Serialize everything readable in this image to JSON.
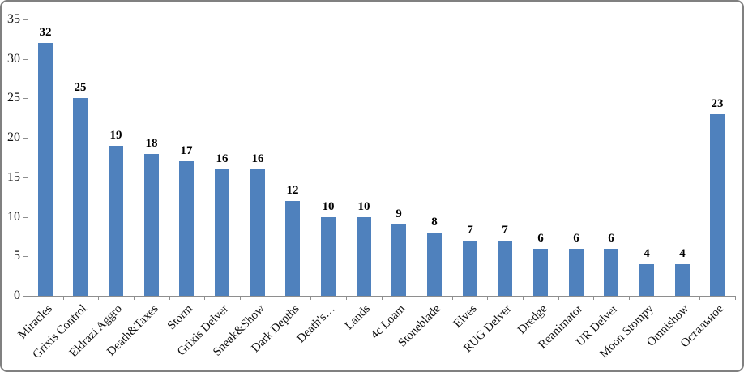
{
  "chart_data": {
    "type": "bar",
    "title": "",
    "xlabel": "",
    "ylabel": "",
    "categories": [
      "Miracles",
      "Grixis Control",
      "Eldrazi Aggro",
      "Death&Taxes",
      "Storm",
      "Grixis Delver",
      "Sneak&Show",
      "Dark Depths",
      "Death's…",
      "Lands",
      "4c Loam",
      "Stoneblade",
      "Elves",
      "RUG Delver",
      "Dredge",
      "Reanimator",
      "UR Delver",
      "Moon Stompy",
      "Omnishow",
      "Остальное"
    ],
    "values": [
      32,
      25,
      19,
      18,
      17,
      16,
      16,
      12,
      10,
      10,
      9,
      8,
      7,
      7,
      6,
      6,
      6,
      4,
      4,
      23
    ],
    "data_labels_visible": true,
    "yticks": [
      0,
      5,
      10,
      15,
      20,
      25,
      30,
      35
    ],
    "ylim": [
      0,
      35
    ],
    "grid": false,
    "legend": "none",
    "category_label_rotation_deg": 45,
    "colors": {
      "bar_fill": "#4F81BD",
      "axis_line": "#8E8E8E",
      "frame_border": "#808080",
      "label_text": "#000000",
      "background": "#FFFFFF"
    }
  }
}
